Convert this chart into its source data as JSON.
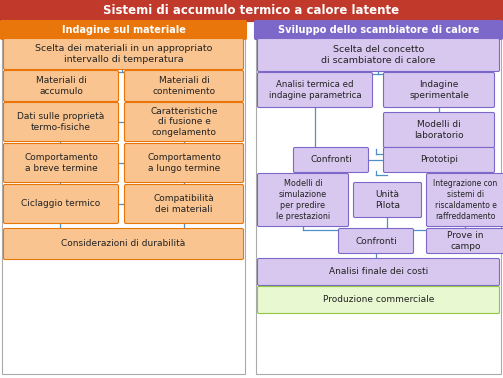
{
  "title": "Sistemi di accumulo termico a calore latente",
  "title_bg": "#C0392B",
  "title_fg": "white",
  "left_header": "Indagine sul materiale",
  "left_header_bg": "#E8760A",
  "left_header_fg": "white",
  "right_header": "Sviluppo dello scambiatore di calore",
  "right_header_bg": "#7B68C8",
  "right_header_fg": "white",
  "orange_box_bg": "#F9C490",
  "orange_box_border": "#E8760A",
  "purple_box_bg": "#D8C8F0",
  "purple_box_border": "#7B68C8",
  "green_box_bg": "#E8F8D0",
  "green_box_border": "#90C840",
  "line_color": "#5090C8",
  "bg_color": "#FFFFFF"
}
